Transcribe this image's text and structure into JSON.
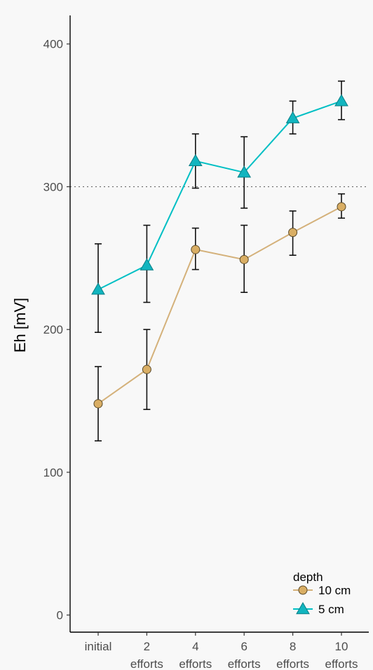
{
  "chart_data": {
    "type": "line",
    "ylabel": "Eh [mV]",
    "ylim": [
      -12,
      420
    ],
    "yticks": [
      0,
      100,
      200,
      300,
      400
    ],
    "reference_line": 300,
    "categories": [
      [
        "initial"
      ],
      [
        "2",
        "efforts"
      ],
      [
        "4",
        "efforts"
      ],
      [
        "6",
        "efforts"
      ],
      [
        "8",
        "efforts"
      ],
      [
        "10",
        "efforts"
      ]
    ],
    "legend": {
      "title": "depth",
      "position": "bottom-right"
    },
    "series": [
      {
        "name": "10 cm",
        "marker": "circle",
        "color": "#d9ae64",
        "line_color": "#d4b17a",
        "values": [
          148,
          172,
          256,
          249,
          268,
          286
        ],
        "err_low": [
          122,
          144,
          242,
          226,
          252,
          278
        ],
        "err_high": [
          174,
          200,
          271,
          273,
          283,
          295
        ]
      },
      {
        "name": "5 cm",
        "marker": "triangle",
        "color": "#12b5bf",
        "line_color": "#00bfc4",
        "values": [
          228,
          245,
          318,
          310,
          348,
          360
        ],
        "err_low": [
          198,
          219,
          299,
          285,
          337,
          347
        ],
        "err_high": [
          260,
          273,
          337,
          335,
          360,
          374
        ]
      }
    ],
    "grid": false
  }
}
